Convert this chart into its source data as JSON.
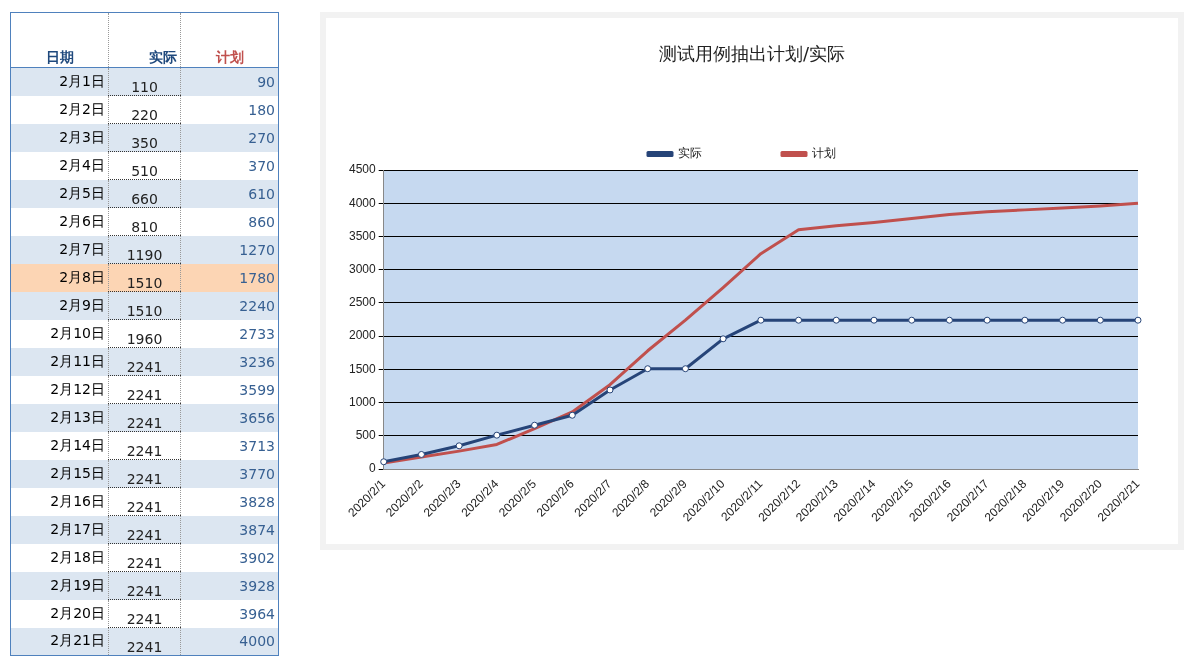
{
  "chart_data": [
    {
      "type": "other",
      "xlabel": "日期",
      "categories": [
        "2月1日",
        "2月2日",
        "2月3日",
        "2月4日",
        "2月5日",
        "2月6日",
        "2月7日",
        "2月8日",
        "2月9日",
        "2月10日",
        "2月11日",
        "2月12日",
        "2月13日",
        "2月14日",
        "2月15日",
        "2月16日",
        "2月17日",
        "2月18日",
        "2月19日",
        "2月20日",
        "2月21日"
      ],
      "series": [
        {
          "name": "实际",
          "colors": [
            "#dce6f1",
            "#ffffff",
            "#dce6f1",
            "#ffffff",
            "#dce6f1",
            "#ffffff",
            "#dce6f1",
            "#fcd5b4",
            "#dce6f1",
            "#ffffff",
            "#dce6f1",
            "#ffffff",
            "#dce6f1",
            "#ffffff",
            "#dce6f1",
            "#ffffff",
            "#dce6f1",
            "#ffffff",
            "#dce6f1",
            "#ffffff",
            "#dce6f1"
          ],
          "values": [
            110,
            220,
            350,
            510,
            660,
            810,
            1190,
            1510,
            1510,
            1960,
            2241,
            2241,
            2241,
            2241,
            2241,
            2241,
            2241,
            2241,
            2241,
            2241,
            2241
          ],
          "value_labels": [
            "110",
            "220",
            "350",
            "510",
            "660",
            "810",
            "1190",
            "1510",
            "1510",
            "1960",
            "2241",
            "2241",
            "2241",
            "2241",
            "2241",
            "2241",
            "2241",
            "2241",
            "2241",
            "2241",
            "2241"
          ]
        },
        {
          "name": "计划",
          "colors": [
            "#dce6f1",
            "#ffffff",
            "#dce6f1",
            "#ffffff",
            "#dce6f1",
            "#ffffff",
            "#dce6f1",
            "#fcd5b4",
            "#dce6f1",
            "#ffffff",
            "#dce6f1",
            "#ffffff",
            "#dce6f1",
            "#ffffff",
            "#dce6f1",
            "#ffffff",
            "#dce6f1",
            "#ffffff",
            "#dce6f1",
            "#ffffff",
            "#dce6f1"
          ],
          "values": [
            90,
            180,
            270,
            370,
            610,
            860,
            1270,
            1780,
            2240,
            2733,
            3236,
            3599,
            3656,
            3713,
            3770,
            3828,
            3874,
            3902,
            3928,
            3964,
            4000
          ],
          "value_labels": [
            "90",
            "180",
            "270",
            "370",
            "610",
            "860",
            "1270",
            "1780",
            "2240",
            "2733",
            "3236",
            "3599",
            "3656",
            "3713",
            "3770",
            "3828",
            "3874",
            "3902",
            "3928",
            "3964",
            "4000"
          ]
        }
      ]
    },
    {
      "type": "line",
      "title": "测试用例抽出计划/实际",
      "categories": [
        "2020/2/1",
        "2020/2/2",
        "2020/2/3",
        "2020/2/4",
        "2020/2/5",
        "2020/2/6",
        "2020/2/7",
        "2020/2/8",
        "2020/2/9",
        "2020/2/10",
        "2020/2/11",
        "2020/2/12",
        "2020/2/13",
        "2020/2/14",
        "2020/2/15",
        "2020/2/16",
        "2020/2/17",
        "2020/2/18",
        "2020/2/19",
        "2020/2/20",
        "2020/2/21"
      ],
      "series": [
        {
          "name": "实际",
          "color": "#264478",
          "marker": "circle",
          "values": [
            110,
            220,
            350,
            510,
            660,
            810,
            1190,
            1510,
            1510,
            1960,
            2240,
            2240,
            2240,
            2240,
            2240,
            2240,
            2240,
            2240,
            2240,
            2240,
            2240
          ]
        },
        {
          "name": "计划",
          "color": "#c0504d",
          "marker": "none",
          "values": [
            90,
            180,
            270,
            370,
            610,
            860,
            1270,
            1780,
            2240,
            2730,
            3240,
            3600,
            3660,
            3710,
            3770,
            3830,
            3870,
            3900,
            3930,
            3960,
            4000
          ]
        }
      ],
      "ylim": [
        0,
        4500
      ],
      "yticks": [
        0,
        500,
        1000,
        1500,
        2000,
        2500,
        3000,
        3500,
        4000,
        4500
      ],
      "grid": "y",
      "legend": "top"
    }
  ]
}
